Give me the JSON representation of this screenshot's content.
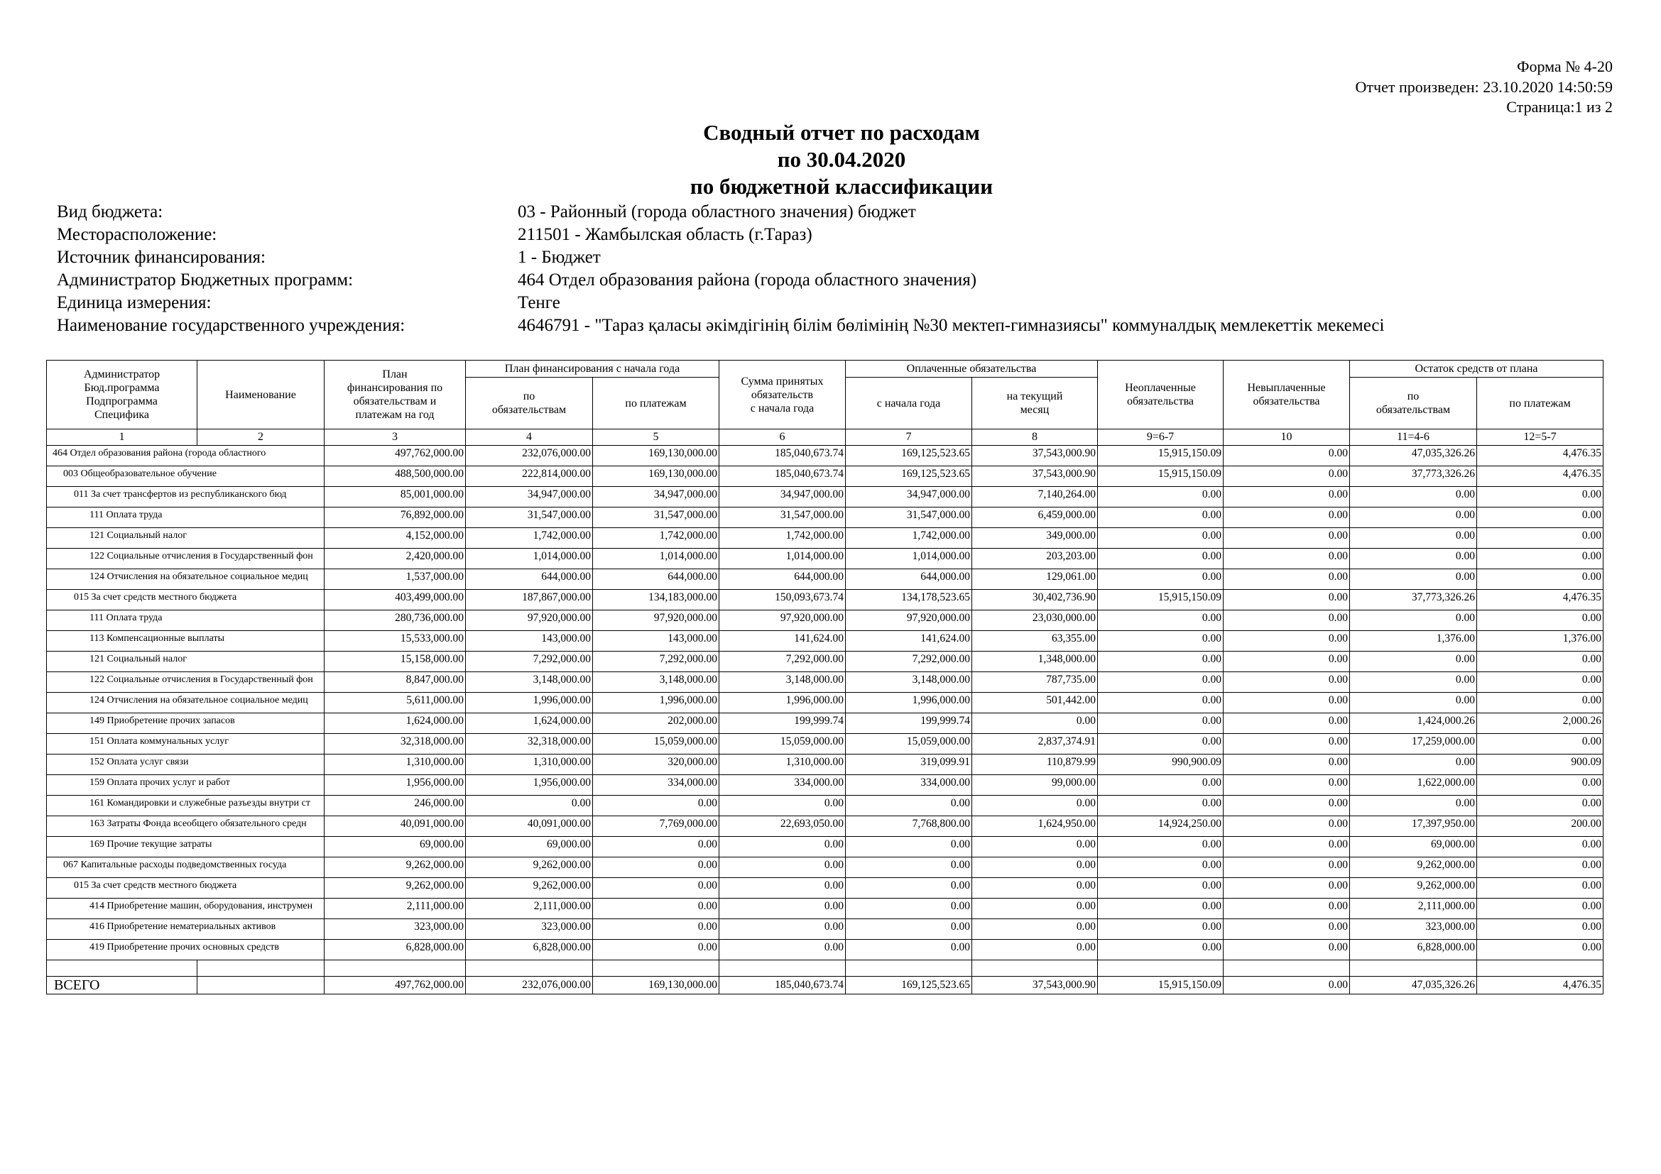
{
  "header": {
    "form": "Форма № 4-20",
    "report_date": "Отчет произведен: 23.10.2020 14:50:59",
    "page": "Страница:1 из 2"
  },
  "title": [
    "Сводный отчет по расходам",
    "по 30.04.2020",
    "по бюджетной классификации"
  ],
  "info": [
    {
      "label": "Вид бюджета:",
      "value": "03 - Районный (города областного значения) бюджет"
    },
    {
      "label": "Месторасположение:",
      "value": "211501 - Жамбылская область (г.Тараз)"
    },
    {
      "label": "Источник финансирования:",
      "value": "1 - Бюджет"
    },
    {
      "label": "Администратор Бюджетных программ:",
      "value": "464 Отдел образования района (города областного значения)"
    },
    {
      "label": "Единица измерения:",
      "value": "Тенге"
    },
    {
      "label": "Наименование государственного учреждения:",
      "value": "4646791 - \"Тараз қаласы әкімдігінің білім бөлімінің №30 мектеп-гимназиясы\" коммуналдық мемлекеттік мекемесі"
    }
  ],
  "table": {
    "columns_head": [
      [
        "Администратор",
        "Бюд.программа",
        "Подпрограмма",
        "Специфика"
      ],
      [
        "Наименование"
      ],
      [
        "План",
        "финансирования по",
        "обязательствам и",
        "платежам на год"
      ],
      [
        "Сумма принятых",
        "обязательств",
        "с начала года"
      ],
      [
        "Неоплаченные",
        "обязательства"
      ],
      [
        "Невыплаченные",
        "обязательства"
      ]
    ],
    "groups": [
      {
        "title": "План финансирования с начала года",
        "sub": [
          [
            "по",
            "обязательствам"
          ],
          [
            "по платежам"
          ]
        ]
      },
      {
        "title": "Оплаченные обязательства",
        "sub": [
          [
            "с начала года"
          ],
          [
            "на текущий",
            "месяц"
          ]
        ]
      },
      {
        "title": "Остаток средств от плана",
        "sub": [
          [
            "по",
            "обязательствам"
          ],
          [
            "по платежам"
          ]
        ]
      }
    ],
    "column_numbers": [
      "1",
      "2",
      "3",
      "4",
      "5",
      "6",
      "7",
      "8",
      "9=6-7",
      "10",
      "11=4-6",
      "12=5-7"
    ],
    "rows": [
      {
        "name": "464 Отдел образования района (города областного",
        "values": [
          "497,762,000.00",
          "232,076,000.00",
          "169,130,000.00",
          "185,040,673.74",
          "169,125,523.65",
          "37,543,000.90",
          "15,915,150.09",
          "0.00",
          "47,035,326.26",
          "4,476.35"
        ]
      },
      {
        "name": "003 Общеобразовательное обучение",
        "values": [
          "488,500,000.00",
          "222,814,000.00",
          "169,130,000.00",
          "185,040,673.74",
          "169,125,523.65",
          "37,543,000.90",
          "15,915,150.09",
          "0.00",
          "37,773,326.26",
          "4,476.35"
        ]
      },
      {
        "name": "011 За счет трансфертов из республиканского бюд",
        "values": [
          "85,001,000.00",
          "34,947,000.00",
          "34,947,000.00",
          "34,947,000.00",
          "34,947,000.00",
          "7,140,264.00",
          "0.00",
          "0.00",
          "0.00",
          "0.00"
        ]
      },
      {
        "name": "111 Оплата труда",
        "values": [
          "76,892,000.00",
          "31,547,000.00",
          "31,547,000.00",
          "31,547,000.00",
          "31,547,000.00",
          "6,459,000.00",
          "0.00",
          "0.00",
          "0.00",
          "0.00"
        ]
      },
      {
        "name": "121 Социальный налог",
        "values": [
          "4,152,000.00",
          "1,742,000.00",
          "1,742,000.00",
          "1,742,000.00",
          "1,742,000.00",
          "349,000.00",
          "0.00",
          "0.00",
          "0.00",
          "0.00"
        ]
      },
      {
        "name": "122 Социальные отчисления в Государственный фон",
        "values": [
          "2,420,000.00",
          "1,014,000.00",
          "1,014,000.00",
          "1,014,000.00",
          "1,014,000.00",
          "203,203.00",
          "0.00",
          "0.00",
          "0.00",
          "0.00"
        ]
      },
      {
        "name": "124 Отчисления на обязательное социальное медиц",
        "values": [
          "1,537,000.00",
          "644,000.00",
          "644,000.00",
          "644,000.00",
          "644,000.00",
          "129,061.00",
          "0.00",
          "0.00",
          "0.00",
          "0.00"
        ]
      },
      {
        "name": "015 За счет средств местного бюджета",
        "values": [
          "403,499,000.00",
          "187,867,000.00",
          "134,183,000.00",
          "150,093,673.74",
          "134,178,523.65",
          "30,402,736.90",
          "15,915,150.09",
          "0.00",
          "37,773,326.26",
          "4,476.35"
        ]
      },
      {
        "name": "111 Оплата труда",
        "values": [
          "280,736,000.00",
          "97,920,000.00",
          "97,920,000.00",
          "97,920,000.00",
          "97,920,000.00",
          "23,030,000.00",
          "0.00",
          "0.00",
          "0.00",
          "0.00"
        ]
      },
      {
        "name": "113 Компенсационные выплаты",
        "values": [
          "15,533,000.00",
          "143,000.00",
          "143,000.00",
          "141,624.00",
          "141,624.00",
          "63,355.00",
          "0.00",
          "0.00",
          "1,376.00",
          "1,376.00"
        ]
      },
      {
        "name": "121 Социальный налог",
        "values": [
          "15,158,000.00",
          "7,292,000.00",
          "7,292,000.00",
          "7,292,000.00",
          "7,292,000.00",
          "1,348,000.00",
          "0.00",
          "0.00",
          "0.00",
          "0.00"
        ]
      },
      {
        "name": "122 Социальные отчисления в Государственный фон",
        "values": [
          "8,847,000.00",
          "3,148,000.00",
          "3,148,000.00",
          "3,148,000.00",
          "3,148,000.00",
          "787,735.00",
          "0.00",
          "0.00",
          "0.00",
          "0.00"
        ]
      },
      {
        "name": "124 Отчисления на обязательное социальное медиц",
        "values": [
          "5,611,000.00",
          "1,996,000.00",
          "1,996,000.00",
          "1,996,000.00",
          "1,996,000.00",
          "501,442.00",
          "0.00",
          "0.00",
          "0.00",
          "0.00"
        ]
      },
      {
        "name": "149 Приобретение прочих запасов",
        "values": [
          "1,624,000.00",
          "1,624,000.00",
          "202,000.00",
          "199,999.74",
          "199,999.74",
          "0.00",
          "0.00",
          "0.00",
          "1,424,000.26",
          "2,000.26"
        ]
      },
      {
        "name": "151 Оплата коммунальных услуг",
        "values": [
          "32,318,000.00",
          "32,318,000.00",
          "15,059,000.00",
          "15,059,000.00",
          "15,059,000.00",
          "2,837,374.91",
          "0.00",
          "0.00",
          "17,259,000.00",
          "0.00"
        ]
      },
      {
        "name": "152 Оплата услуг связи",
        "values": [
          "1,310,000.00",
          "1,310,000.00",
          "320,000.00",
          "1,310,000.00",
          "319,099.91",
          "110,879.99",
          "990,900.09",
          "0.00",
          "0.00",
          "900.09"
        ]
      },
      {
        "name": "159 Оплата прочих услуг и работ",
        "values": [
          "1,956,000.00",
          "1,956,000.00",
          "334,000.00",
          "334,000.00",
          "334,000.00",
          "99,000.00",
          "0.00",
          "0.00",
          "1,622,000.00",
          "0.00"
        ]
      },
      {
        "name": "161 Командировки и служебные разъезды внутри ст",
        "values": [
          "246,000.00",
          "0.00",
          "0.00",
          "0.00",
          "0.00",
          "0.00",
          "0.00",
          "0.00",
          "0.00",
          "0.00"
        ]
      },
      {
        "name": "163 Затраты Фонда всеобщего обязательного средн",
        "values": [
          "40,091,000.00",
          "40,091,000.00",
          "7,769,000.00",
          "22,693,050.00",
          "7,768,800.00",
          "1,624,950.00",
          "14,924,250.00",
          "0.00",
          "17,397,950.00",
          "200.00"
        ]
      },
      {
        "name": "169 Прочие текущие затраты",
        "values": [
          "69,000.00",
          "69,000.00",
          "0.00",
          "0.00",
          "0.00",
          "0.00",
          "0.00",
          "0.00",
          "69,000.00",
          "0.00"
        ]
      },
      {
        "name": "067 Капитальные расходы подведомственных госуда",
        "values": [
          "9,262,000.00",
          "9,262,000.00",
          "0.00",
          "0.00",
          "0.00",
          "0.00",
          "0.00",
          "0.00",
          "9,262,000.00",
          "0.00"
        ]
      },
      {
        "name": "015 За счет средств местного бюджета",
        "values": [
          "9,262,000.00",
          "9,262,000.00",
          "0.00",
          "0.00",
          "0.00",
          "0.00",
          "0.00",
          "0.00",
          "9,262,000.00",
          "0.00"
        ]
      },
      {
        "name": "414 Приобретение машин, оборудования, инструмен",
        "values": [
          "2,111,000.00",
          "2,111,000.00",
          "0.00",
          "0.00",
          "0.00",
          "0.00",
          "0.00",
          "0.00",
          "2,111,000.00",
          "0.00"
        ]
      },
      {
        "name": "416 Приобретение нематериальных активов",
        "values": [
          "323,000.00",
          "323,000.00",
          "0.00",
          "0.00",
          "0.00",
          "0.00",
          "0.00",
          "0.00",
          "323,000.00",
          "0.00"
        ]
      },
      {
        "name": "419 Приобретение прочих основных средств",
        "values": [
          "6,828,000.00",
          "6,828,000.00",
          "0.00",
          "0.00",
          "0.00",
          "0.00",
          "0.00",
          "0.00",
          "6,828,000.00",
          "0.00"
        ]
      }
    ],
    "total": {
      "label": "ВСЕГО",
      "values": [
        "497,762,000.00",
        "232,076,000.00",
        "169,130,000.00",
        "185,040,673.74",
        "169,125,523.65",
        "37,543,000.90",
        "15,915,150.09",
        "0.00",
        "47,035,326.26",
        "4,476.35"
      ]
    }
  }
}
